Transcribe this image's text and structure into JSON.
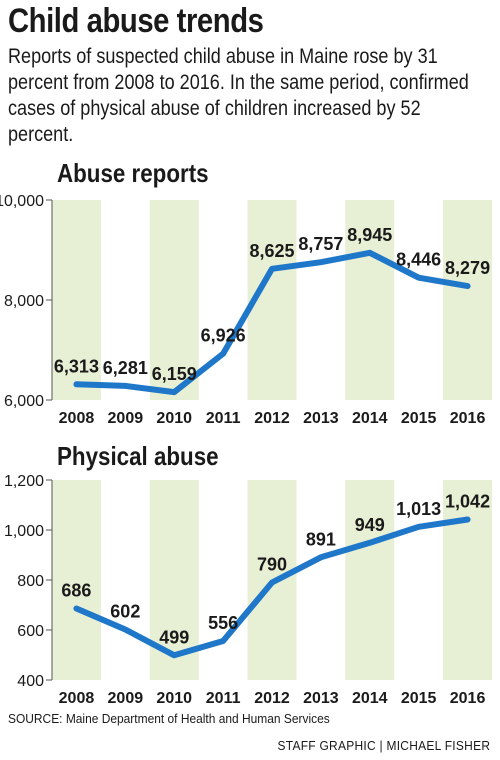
{
  "header": {
    "title": "Child abuse trends",
    "intro": "Reports of suspected child abuse in Maine rose by 31 percent from 2008 to 2016. In the same period, confirmed cases of physical abuse of children increased by 52 percent."
  },
  "footer": {
    "source": "SOURCE: Maine Department of Health and Human Services",
    "credit": "STAFF GRAPHIC | MICHAEL FISHER"
  },
  "colors": {
    "line": "#1f77c9",
    "band": "#e7efd4",
    "axis": "#555555",
    "text": "#1a1a1a"
  },
  "chart_data": [
    {
      "type": "line",
      "title": "Abuse reports",
      "categories": [
        "2008",
        "2009",
        "2010",
        "2011",
        "2012",
        "2013",
        "2014",
        "2015",
        "2016"
      ],
      "values": [
        6313,
        6281,
        6159,
        6926,
        8625,
        8757,
        8945,
        8446,
        8279
      ],
      "value_labels": [
        "6,313",
        "6,281",
        "6,159",
        "6,926",
        "8,625",
        "8,757",
        "8,945",
        "8,446",
        "8,279"
      ],
      "ylim": [
        6000,
        10000
      ],
      "yticks": [
        6000,
        8000,
        10000
      ],
      "ytick_labels": [
        "6,000",
        "8,000",
        "10,000"
      ],
      "grid": false
    },
    {
      "type": "line",
      "title": "Physical abuse",
      "categories": [
        "2008",
        "2009",
        "2010",
        "2011",
        "2012",
        "2013",
        "2014",
        "2015",
        "2016"
      ],
      "values": [
        686,
        602,
        499,
        556,
        790,
        891,
        949,
        1013,
        1042
      ],
      "value_labels": [
        "686",
        "602",
        "499",
        "556",
        "790",
        "891",
        "949",
        "1,013",
        "1,042"
      ],
      "ylim": [
        400,
        1200
      ],
      "yticks": [
        400,
        600,
        800,
        1000,
        1200
      ],
      "ytick_labels": [
        "400",
        "600",
        "800",
        "1,000",
        "1,200"
      ],
      "grid": false
    }
  ]
}
